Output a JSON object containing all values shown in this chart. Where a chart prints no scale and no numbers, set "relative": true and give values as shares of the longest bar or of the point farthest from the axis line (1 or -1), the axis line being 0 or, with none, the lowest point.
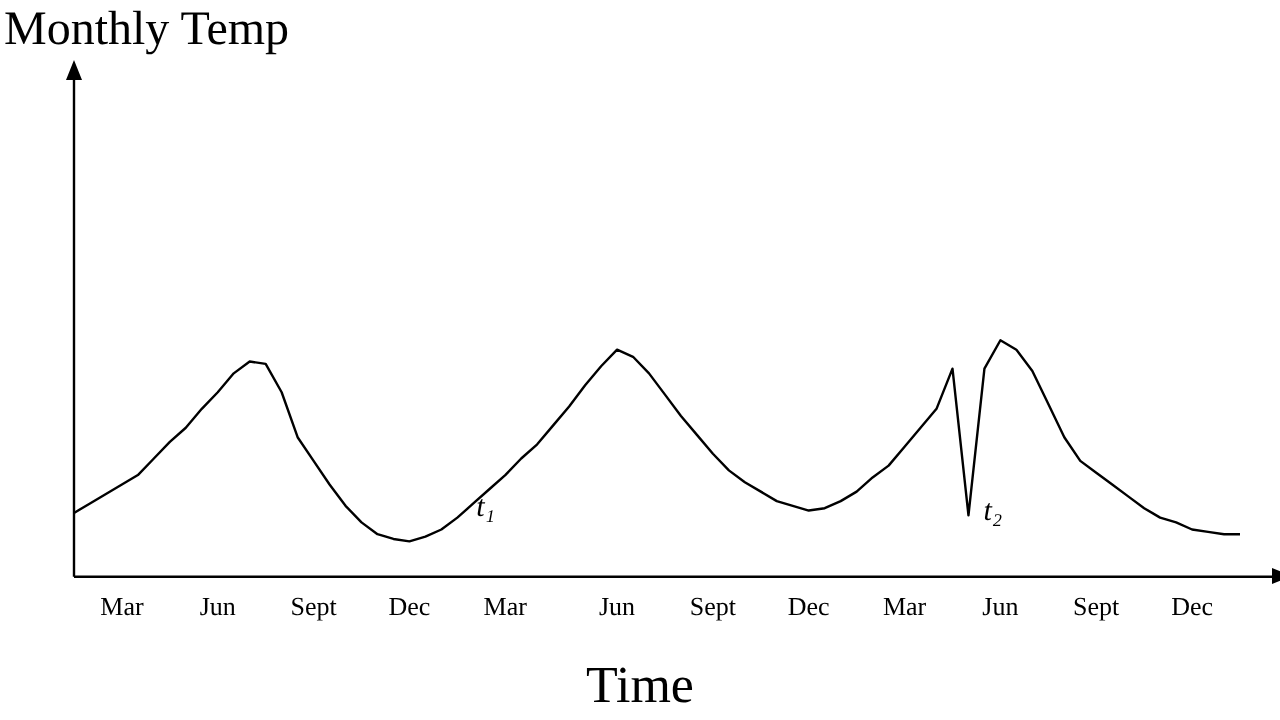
{
  "chart_data": {
    "type": "line",
    "relative": true,
    "xlabel": "Time",
    "color": "#000000",
    "marker": "none",
    "grid": false,
    "legend": false,
    "categories": [
      null,
      null,
      null,
      "Mar",
      null,
      null,
      null,
      null,
      null,
      "Jun",
      null,
      null,
      null,
      null,
      null,
      "Sept",
      null,
      null,
      null,
      null,
      null,
      "Dec",
      null,
      null,
      null,
      null,
      null,
      "Mar",
      null,
      null,
      null,
      null,
      null,
      null,
      "Jun",
      null,
      null,
      null,
      null,
      null,
      "Sept",
      null,
      null,
      null,
      null,
      null,
      "Dec",
      null,
      null,
      null,
      null,
      null,
      "Mar",
      null,
      null,
      null,
      null,
      null,
      "Jun",
      null,
      null,
      null,
      null,
      null,
      "Sept",
      null,
      null,
      null,
      null,
      null,
      "Dec",
      null,
      null,
      null
    ],
    "values": [
      0.27,
      0.31,
      0.35,
      0.39,
      0.43,
      0.5,
      0.57,
      0.63,
      0.71,
      0.78,
      0.86,
      0.91,
      0.9,
      0.78,
      0.59,
      0.49,
      0.39,
      0.3,
      0.23,
      0.18,
      0.16,
      0.15,
      0.17,
      0.2,
      0.25,
      0.31,
      0.37,
      0.43,
      0.5,
      0.56,
      0.64,
      0.72,
      0.81,
      0.89,
      0.96,
      0.93,
      0.86,
      0.77,
      0.68,
      0.6,
      0.52,
      0.45,
      0.4,
      0.36,
      0.32,
      0.3,
      0.28,
      0.29,
      0.32,
      0.36,
      0.42,
      0.47,
      0.55,
      0.63,
      0.71,
      0.88,
      0.26,
      0.88,
      1.0,
      0.96,
      0.87,
      0.73,
      0.59,
      0.49,
      0.44,
      0.39,
      0.34,
      0.29,
      0.25,
      0.23,
      0.2,
      0.19,
      0.18,
      0.18
    ],
    "annotations": [
      "Monthly Temp",
      "t₁",
      "t₂"
    ]
  }
}
